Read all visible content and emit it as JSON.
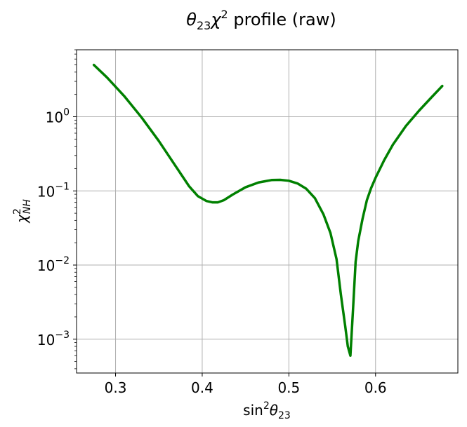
{
  "chart_data": {
    "type": "line",
    "title": "θ₂₃χ² profile (raw)",
    "title_parts": {
      "theta": "θ",
      "sub23": "23",
      "chi": "χ",
      "sup2": "2",
      "rest": " profile (raw)"
    },
    "xlabel": "sin²θ₂₃",
    "xlabel_parts": {
      "sin": "sin",
      "sup2": "2",
      "theta": "θ",
      "sub23": "23"
    },
    "ylabel": "χ²_NH",
    "ylabel_parts": {
      "chi": "χ",
      "sup2": "2",
      "subNH": "NH"
    },
    "xscale": "linear",
    "yscale": "log",
    "xlim": [
      0.255,
      0.695
    ],
    "ylim": [
      0.00035,
      8
    ],
    "grid": true,
    "line_color": "#008000",
    "grid_color": "#b0b0b0",
    "x_ticks": [
      {
        "value": 0.3,
        "label": "0.3"
      },
      {
        "value": 0.4,
        "label": "0.4"
      },
      {
        "value": 0.5,
        "label": "0.5"
      },
      {
        "value": 0.6,
        "label": "0.6"
      }
    ],
    "y_ticks": [
      {
        "value": 0.001,
        "base": "10",
        "exp": "−3"
      },
      {
        "value": 0.01,
        "base": "10",
        "exp": "−2"
      },
      {
        "value": 0.1,
        "base": "10",
        "exp": "−1"
      },
      {
        "value": 1,
        "base": "10",
        "exp": "0"
      }
    ],
    "series": [
      {
        "name": "NH",
        "x": [
          0.275,
          0.29,
          0.31,
          0.33,
          0.35,
          0.37,
          0.385,
          0.395,
          0.405,
          0.412,
          0.418,
          0.425,
          0.435,
          0.45,
          0.465,
          0.48,
          0.49,
          0.5,
          0.51,
          0.52,
          0.53,
          0.54,
          0.548,
          0.555,
          0.56,
          0.565,
          0.568,
          0.571,
          0.574,
          0.577,
          0.58,
          0.585,
          0.59,
          0.595,
          0.6,
          0.61,
          0.62,
          0.635,
          0.65,
          0.665,
          0.677
        ],
        "y": [
          5.0,
          3.4,
          1.9,
          0.98,
          0.47,
          0.21,
          0.115,
          0.085,
          0.073,
          0.07,
          0.07,
          0.075,
          0.089,
          0.112,
          0.13,
          0.14,
          0.141,
          0.137,
          0.126,
          0.107,
          0.08,
          0.048,
          0.027,
          0.012,
          0.004,
          0.0015,
          0.0008,
          0.0006,
          0.0025,
          0.011,
          0.021,
          0.042,
          0.075,
          0.11,
          0.15,
          0.26,
          0.42,
          0.75,
          1.2,
          1.85,
          2.6
        ]
      }
    ]
  }
}
